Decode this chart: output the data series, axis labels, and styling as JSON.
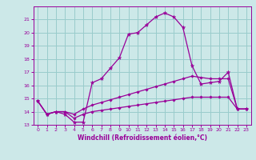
{
  "xlabel": "Windchill (Refroidissement éolien,°C)",
  "bg_color": "#cce8e8",
  "grid_color": "#99cccc",
  "line_color": "#990099",
  "xlim": [
    -0.5,
    23.5
  ],
  "ylim": [
    13.0,
    22.0
  ],
  "yticks": [
    13,
    14,
    15,
    16,
    17,
    18,
    19,
    20,
    21
  ],
  "xticks": [
    0,
    1,
    2,
    3,
    4,
    5,
    6,
    7,
    8,
    9,
    10,
    11,
    12,
    13,
    14,
    15,
    16,
    17,
    18,
    19,
    20,
    21,
    22,
    23
  ],
  "line1_x": [
    0,
    1,
    2,
    3,
    4,
    5,
    6,
    7,
    8,
    9,
    10,
    11,
    12,
    13,
    14,
    15,
    16,
    17,
    18,
    19,
    20,
    21,
    22,
    23
  ],
  "line1_y": [
    14.8,
    13.8,
    14.0,
    13.8,
    13.2,
    13.2,
    16.2,
    16.5,
    17.3,
    18.1,
    19.9,
    20.0,
    20.6,
    21.2,
    21.5,
    21.2,
    20.4,
    17.5,
    16.1,
    16.2,
    16.3,
    17.0,
    14.2,
    14.2
  ],
  "line2_x": [
    0,
    1,
    2,
    3,
    4,
    5,
    6,
    7,
    8,
    9,
    10,
    11,
    12,
    13,
    14,
    15,
    16,
    17,
    18,
    19,
    20,
    21,
    22,
    23
  ],
  "line2_y": [
    14.8,
    13.8,
    14.0,
    14.0,
    13.8,
    14.2,
    14.5,
    14.7,
    14.9,
    15.1,
    15.3,
    15.5,
    15.7,
    15.9,
    16.1,
    16.3,
    16.5,
    16.7,
    16.6,
    16.5,
    16.5,
    16.5,
    14.2,
    14.2
  ],
  "line3_x": [
    0,
    1,
    2,
    3,
    4,
    5,
    6,
    7,
    8,
    9,
    10,
    11,
    12,
    13,
    14,
    15,
    16,
    17,
    18,
    19,
    20,
    21,
    22,
    23
  ],
  "line3_y": [
    14.8,
    13.8,
    14.0,
    14.0,
    13.5,
    13.8,
    14.0,
    14.1,
    14.2,
    14.3,
    14.4,
    14.5,
    14.6,
    14.7,
    14.8,
    14.9,
    15.0,
    15.1,
    15.1,
    15.1,
    15.1,
    15.1,
    14.2,
    14.2
  ]
}
